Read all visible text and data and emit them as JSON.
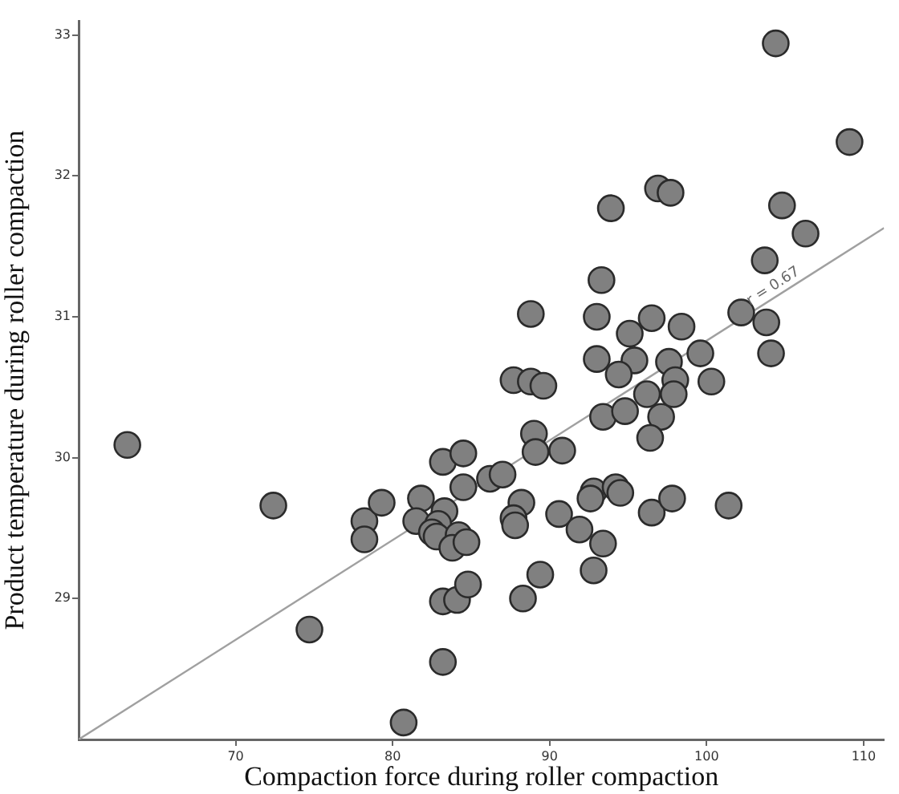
{
  "chart_data": {
    "type": "scatter",
    "xlabel": "Compaction force during roller compaction",
    "ylabel": "Product temperature during roller compaction",
    "xlim": [
      60,
      111.3
    ],
    "ylim": [
      28,
      33.1
    ],
    "xticks": [
      70,
      80,
      90,
      100,
      110
    ],
    "yticks": [
      29,
      30,
      31,
      32,
      33
    ],
    "grid": false,
    "legend": false,
    "marker": "circle",
    "annotations": [
      {
        "text": "r = 0.67",
        "x": 103,
        "y": 31.04
      }
    ],
    "series": [
      {
        "color": "#808080",
        "x": [
          63.1,
          72.4,
          74.7,
          78.2,
          78.2,
          79.3,
          80.7,
          81.8,
          81.5,
          83.2,
          84.5,
          84.5,
          83.3,
          82.9,
          82.5,
          82.8,
          84.2,
          83.8,
          84.7,
          83.2,
          84.1,
          84.8,
          83.2,
          96.2,
          93.4,
          94.8,
          97.1,
          96.4,
          89.0,
          89.1,
          90.8,
          86.2,
          87.0,
          88.2,
          87.7,
          87.8,
          90.6,
          91.9,
          92.8,
          92.6,
          94.2,
          94.5,
          93.4,
          96.5,
          97.8,
          101.4,
          89.4,
          92.8,
          88.3,
          104.4,
          109.1,
          96.9,
          97.7,
          93.9,
          104.8,
          106.3,
          103.7,
          93.3,
          102.2,
          103.8,
          104.1,
          88.8,
          93.0,
          96.5,
          95.1,
          98.4,
          93.0,
          95.4,
          97.6,
          99.6,
          94.4,
          87.7,
          88.8,
          89.6,
          98.0,
          100.3,
          97.9
        ],
        "values": [
          30.09,
          29.66,
          28.78,
          29.55,
          29.42,
          29.68,
          28.12,
          29.71,
          29.55,
          29.97,
          30.03,
          29.79,
          29.62,
          29.53,
          29.47,
          29.44,
          29.45,
          29.36,
          29.4,
          28.98,
          28.99,
          29.1,
          28.55,
          30.45,
          30.29,
          30.33,
          30.29,
          30.14,
          30.17,
          30.04,
          30.05,
          29.85,
          29.88,
          29.68,
          29.57,
          29.52,
          29.6,
          29.49,
          29.76,
          29.71,
          29.79,
          29.75,
          29.39,
          29.61,
          29.71,
          29.66,
          29.17,
          29.2,
          29.0,
          32.94,
          32.24,
          31.91,
          31.88,
          31.77,
          31.79,
          31.59,
          31.4,
          31.26,
          31.03,
          30.96,
          30.74,
          31.02,
          31.0,
          30.99,
          30.88,
          30.93,
          30.7,
          30.69,
          30.68,
          30.74,
          30.59,
          30.55,
          30.54,
          30.51,
          30.55,
          30.54,
          30.45
        ]
      },
      {
        "type": "line",
        "color": "#a0a0a0",
        "marker": "none",
        "x": [
          60,
          111.3
        ],
        "values": [
          28,
          31.63
        ]
      }
    ]
  }
}
